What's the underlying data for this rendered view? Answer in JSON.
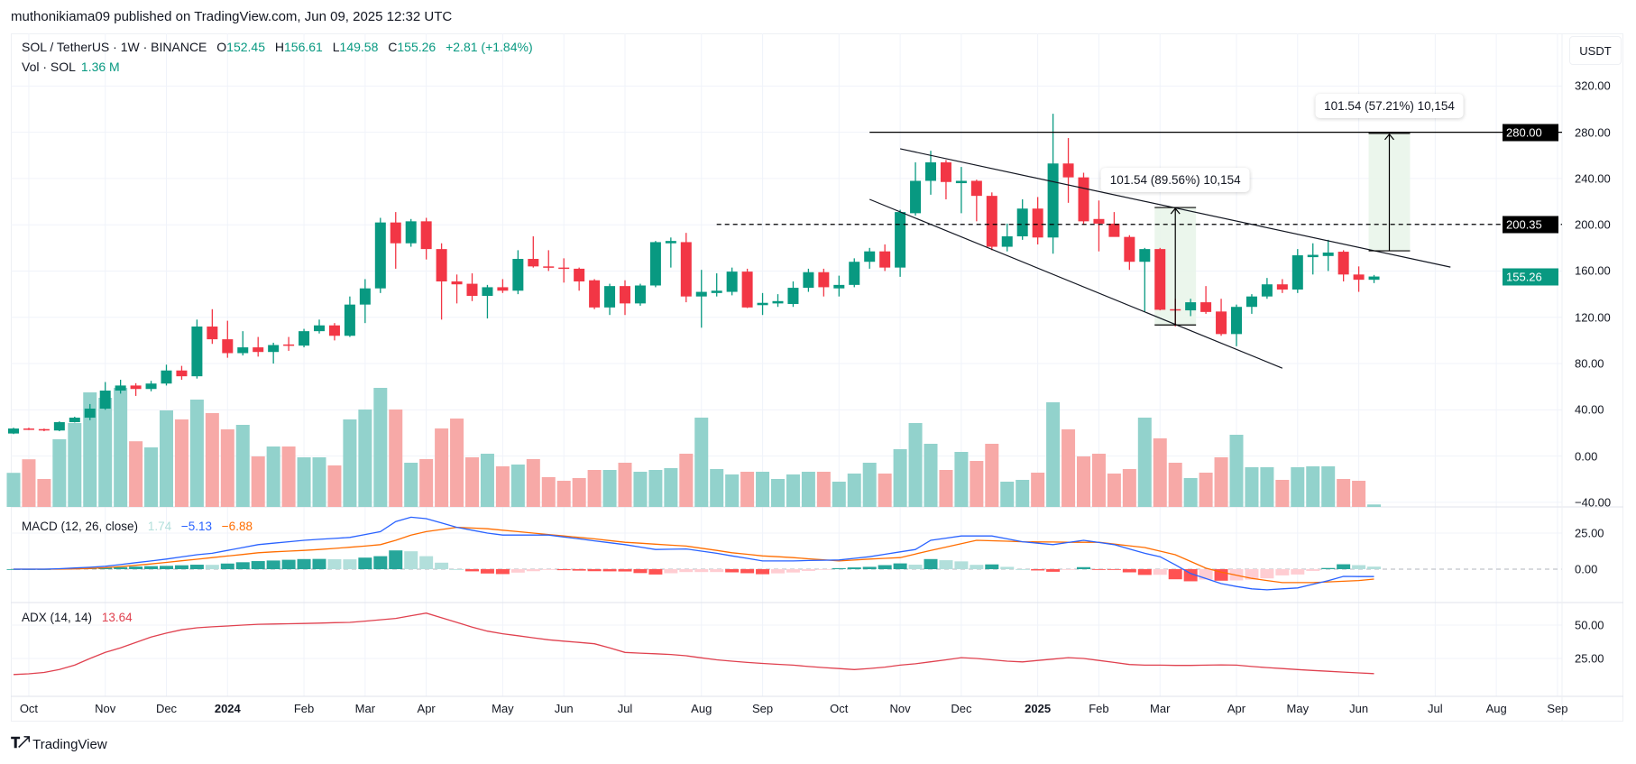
{
  "header": {
    "published": "muthonikiama09 published on TradingView.com, Jun 09, 2025 12:32 UTC"
  },
  "legend": {
    "symbol": "SOL / TetherUS · 1W · BINANCE",
    "o_label": "O",
    "o": "152.45",
    "h_label": "H",
    "h": "156.61",
    "l_label": "L",
    "l": "149.58",
    "c_label": "C",
    "c": "155.26",
    "change": "+2.81 (+1.84%)",
    "vol_label": "Vol · SOL",
    "vol": "1.36 M"
  },
  "macd_legend": {
    "title": "MACD (12, 26, close)",
    "hist": "1.74",
    "macd": "−5.13",
    "signal": "−6.88"
  },
  "adx_legend": {
    "title": "ADX (14, 14)",
    "value": "13.64"
  },
  "currency_button": "USDT",
  "footer": {
    "logo_text": "TradingView"
  },
  "colors": {
    "up": "#089981",
    "down": "#F23645",
    "vol_up": "#92d2cc",
    "vol_down": "#f7a9a7",
    "macd": "#2962FF",
    "signal": "#FF6D00",
    "hist_up_strong": "#26a69a",
    "hist_up_weak": "#b2dfdb",
    "hist_down_strong": "#ff5252",
    "hist_down_weak": "#ffcdd2",
    "adx": "#e0414f",
    "measure_fill": "#e8f5e9"
  },
  "chart_data": {
    "type": "candlestick",
    "symbol": "SOL / TetherUS",
    "interval": "1W",
    "start": "2023-09-25",
    "open": [
      19.5,
      23.8,
      23.3,
      22.1,
      29.3,
      33.2,
      41,
      56.6,
      61,
      58,
      62.7,
      74,
      69,
      112,
      101,
      89,
      94,
      90,
      96.5,
      95.5,
      108,
      113,
      104,
      131,
      145,
      202,
      184,
      203,
      179,
      151,
      149,
      138.5,
      146,
      143,
      170.5,
      164,
      163,
      162,
      152,
      128.5,
      147,
      132,
      147.5,
      184,
      185,
      138,
      141,
      142,
      159.5,
      130.5,
      132,
      131.5,
      145.5,
      159,
      145,
      148,
      168,
      177,
      163,
      210,
      238,
      254,
      236,
      238,
      225,
      181,
      190,
      214,
      189,
      253,
      241,
      205,
      201,
      189.5,
      168,
      179,
      127,
      126,
      133,
      125,
      105.5,
      129,
      138,
      148.5,
      144,
      172,
      173,
      176.7,
      157,
      152.45
    ],
    "high": [
      24.5,
      24.5,
      23.8,
      30,
      34,
      45,
      64,
      66,
      63,
      65,
      79,
      78,
      118,
      127,
      117,
      108,
      103,
      98,
      103,
      110,
      118,
      115,
      138,
      153,
      206,
      211,
      205,
      206,
      184,
      157,
      158,
      148,
      153,
      178,
      190,
      178,
      171,
      163,
      153,
      149,
      152,
      149,
      186,
      189,
      193,
      161,
      158,
      163,
      162,
      141,
      140,
      151,
      162,
      162,
      156,
      171,
      180,
      183,
      213,
      254,
      264,
      256,
      250,
      239,
      228,
      201,
      222,
      224,
      296,
      275,
      245,
      221,
      211,
      191,
      180,
      180,
      136,
      136,
      147,
      136,
      131,
      140,
      154,
      153,
      179,
      184,
      187,
      178,
      164,
      156.61
    ],
    "low": [
      19,
      22.5,
      21.5,
      21.5,
      29,
      31,
      40,
      54,
      52,
      56,
      61,
      66,
      67,
      97,
      85,
      87,
      86,
      80,
      91,
      94,
      106,
      100,
      103,
      115,
      141,
      162,
      181,
      170,
      118,
      132,
      134,
      119,
      141,
      140,
      163,
      160,
      150,
      143,
      127,
      122,
      122,
      130,
      146,
      163,
      133,
      111,
      138,
      139,
      128,
      122,
      129,
      129,
      142,
      138,
      138,
      146,
      162,
      160,
      155,
      208,
      226,
      222,
      210,
      203,
      178,
      177,
      187,
      183,
      175,
      219,
      200,
      177,
      190,
      161,
      125,
      126,
      112,
      121,
      123,
      104,
      95,
      123,
      136,
      141,
      141,
      157,
      160,
      151,
      142,
      149.58
    ],
    "close": [
      23.8,
      23.3,
      22.1,
      29.3,
      33.2,
      41,
      56.6,
      61,
      58,
      62.7,
      74,
      69,
      112,
      101,
      89,
      94,
      90,
      96,
      95.5,
      108,
      113,
      104,
      131,
      145,
      202,
      184,
      203,
      179,
      151,
      148.5,
      138.5,
      146,
      143,
      170.5,
      164,
      163,
      162,
      151,
      128.5,
      147,
      132,
      147.5,
      185,
      186,
      138,
      142,
      143,
      159.5,
      128.5,
      132.5,
      134,
      145.5,
      159,
      146,
      148,
      168,
      177,
      163,
      211,
      238,
      254,
      237,
      238,
      225,
      181,
      190,
      214,
      189,
      253,
      241,
      203,
      201,
      189.5,
      168,
      179,
      126.5,
      126,
      133,
      124.6,
      105.5,
      129,
      138,
      148.5,
      144,
      173.6,
      174,
      176,
      157,
      152.45,
      155.26
    ],
    "volume_unit": "M",
    "volume": [
      18.9,
      26.4,
      15.5,
      37.5,
      46.5,
      63.5,
      60.5,
      66,
      36.4,
      33,
      53.5,
      48.5,
      59.5,
      52,
      43,
      45.5,
      28,
      33.5,
      33.5,
      27.5,
      27.5,
      23,
      48.5,
      54,
      66,
      54,
      24.5,
      26.5,
      43.5,
      49,
      27.5,
      29.5,
      22.5,
      23.5,
      26.5,
      16.5,
      14.5,
      16,
      20.5,
      20.5,
      24.5,
      19.5,
      20.5,
      21.5,
      29.5,
      49.5,
      21,
      18,
      19.5,
      19.5,
      15.5,
      18,
      19.5,
      19.5,
      14,
      18.5,
      24.5,
      18.5,
      32,
      46.5,
      35,
      20.5,
      30.5,
      25.5,
      35,
      14,
      15,
      19,
      58,
      43,
      28,
      29.5,
      18.5,
      21,
      49.5,
      38,
      24.5,
      16,
      19,
      27.5,
      40,
      22,
      22,
      15,
      22,
      22.5,
      22.5,
      15.5,
      14.5,
      1.36
    ],
    "macd": {
      "params": [
        12,
        26,
        9
      ],
      "macd": [
        0,
        0,
        0,
        0.3,
        0.8,
        1.3,
        2,
        3.2,
        4.5,
        5.7,
        7,
        8.5,
        10,
        11,
        13,
        15,
        17,
        18,
        19,
        20,
        20.7,
        21.3,
        22,
        24,
        26,
        33,
        36,
        35,
        32,
        29,
        27,
        25,
        23.6,
        23.6,
        23.6,
        23.6,
        22.3,
        21,
        19.6,
        18.3,
        17,
        15.3,
        13.6,
        13.8,
        14,
        12.5,
        11,
        9.2,
        7.5,
        5.7,
        5.7,
        5.7,
        6,
        6.2,
        6.4,
        7.5,
        8.6,
        10.3,
        12,
        13.6,
        20,
        21.5,
        23,
        23,
        23,
        21,
        19,
        18,
        17,
        18.5,
        20,
        18.5,
        17,
        14,
        11,
        8.6,
        3,
        -3,
        -6.5,
        -10,
        -12,
        -13.6,
        -14.3,
        -13.6,
        -13,
        -10.5,
        -8,
        -5,
        -5.1,
        -5.13
      ],
      "signal": [
        0,
        0,
        0,
        0,
        0.2,
        0.5,
        1,
        1.8,
        2.7,
        3.6,
        4.7,
        5.8,
        6.9,
        8,
        9.1,
        10.2,
        11.4,
        12,
        12.5,
        13,
        13.6,
        14.4,
        15.2,
        16,
        17,
        20,
        23.6,
        26,
        27.5,
        29,
        28.5,
        28,
        27,
        26,
        25,
        24,
        23,
        22,
        21,
        19.8,
        18.6,
        18,
        17.3,
        16.6,
        16,
        14.5,
        13,
        11.4,
        10.3,
        9.2,
        8.6,
        8,
        7.2,
        6.5,
        5.7,
        6.3,
        7,
        7.5,
        8,
        10.5,
        13,
        15.3,
        17.6,
        20,
        19.7,
        19.4,
        19,
        18.9,
        18.8,
        18.6,
        18.6,
        18.6,
        17.4,
        16.2,
        15,
        12.5,
        10,
        5.4,
        0.7,
        -2,
        -4.2,
        -6.4,
        -7.9,
        -9.3,
        -9.3,
        -9.3,
        -8.8,
        -8.4,
        -7.9,
        -6.88
      ]
    },
    "adx": [
      13,
      13.5,
      14.5,
      16.7,
      20,
      25,
      29.5,
      33,
      37,
      41,
      44,
      46.5,
      48,
      48.7,
      49.3,
      50,
      50.6,
      50.8,
      51,
      51.2,
      51.5,
      51.8,
      52,
      53,
      54,
      55,
      57,
      59,
      55.5,
      52,
      48.5,
      45.5,
      43.5,
      42,
      40.5,
      39,
      38,
      37,
      36,
      33,
      29.5,
      29,
      28.5,
      28,
      27,
      25.5,
      24,
      23,
      22,
      21.3,
      20.6,
      20,
      19,
      18.2,
      17.4,
      16.7,
      17.5,
      18.5,
      20,
      21,
      22.5,
      24,
      25.6,
      25,
      24,
      23,
      22.4,
      23.5,
      24.5,
      25.6,
      25,
      23.5,
      22,
      20.5,
      20,
      20,
      19.8,
      19.8,
      20,
      20.2,
      20,
      19,
      18.2,
      17.4,
      16.7,
      16,
      15.4,
      14.8,
      14.2,
      13.64
    ],
    "price_axis": {
      "values": [
        320,
        280,
        240,
        200,
        160,
        120,
        80,
        40,
        0,
        -40
      ],
      "labels": [
        "320.00",
        "280.00",
        "240.00",
        "200.00",
        "160.00",
        "120.00",
        "80.00",
        "40.00",
        "0.00",
        "−40.00"
      ]
    },
    "macd_axis": {
      "values": [
        25,
        0
      ],
      "labels": [
        "25.00",
        "0.00"
      ]
    },
    "adx_axis": {
      "values": [
        50,
        25
      ],
      "labels": [
        "50.00",
        "25.00"
      ]
    },
    "time_axis": [
      {
        "label": "Oct",
        "date": "2023-10-02"
      },
      {
        "label": "Nov",
        "date": "2023-11-06"
      },
      {
        "label": "Dec",
        "date": "2023-12-04"
      },
      {
        "label": "2024",
        "date": "2024-01-01",
        "year": true
      },
      {
        "label": "Feb",
        "date": "2024-02-05"
      },
      {
        "label": "Mar",
        "date": "2024-03-04"
      },
      {
        "label": "Apr",
        "date": "2024-04-01"
      },
      {
        "label": "May",
        "date": "2024-05-06"
      },
      {
        "label": "Jun",
        "date": "2024-06-03"
      },
      {
        "label": "Jul",
        "date": "2024-07-01"
      },
      {
        "label": "Aug",
        "date": "2024-08-05"
      },
      {
        "label": "Sep",
        "date": "2024-09-02"
      },
      {
        "label": "Oct",
        "date": "2024-10-07"
      },
      {
        "label": "Nov",
        "date": "2024-11-04"
      },
      {
        "label": "Dec",
        "date": "2024-12-02"
      },
      {
        "label": "2025",
        "date": "2025-01-06",
        "year": true
      },
      {
        "label": "Feb",
        "date": "2025-02-03"
      },
      {
        "label": "Mar",
        "date": "2025-03-03"
      },
      {
        "label": "Apr",
        "date": "2025-04-07"
      },
      {
        "label": "May",
        "date": "2025-05-05"
      },
      {
        "label": "Jun",
        "date": "2025-06-02"
      },
      {
        "label": "Jul",
        "date": "2025-07-07"
      },
      {
        "label": "Aug",
        "date": "2025-08-04"
      },
      {
        "label": "Sep",
        "date": "2025-09-01"
      }
    ],
    "price_tags": [
      {
        "label": "280.00",
        "value": 280,
        "color": "#000000"
      },
      {
        "label": "200.35",
        "value": 200.35,
        "color": "#000000"
      },
      {
        "label": "155.26",
        "value": 155.26,
        "color": "#089981"
      }
    ],
    "drawings": {
      "horizontal_line": {
        "price": 280,
        "from": "2024-10-21"
      },
      "dashed_line": {
        "price": 200.35,
        "from": "2024-08-12"
      },
      "upper_trendline": {
        "from": {
          "date": "2024-11-04",
          "price": 265.7
        },
        "to": {
          "date": "2025-07-14",
          "price": 163.4
        }
      },
      "lower_trendline": {
        "from": {
          "date": "2024-10-21",
          "price": 222
        },
        "to": {
          "date": "2025-04-28",
          "price": 76
        }
      },
      "measures": [
        {
          "from": "2025-03-03",
          "to": "2025-03-17",
          "low": 113.38,
          "high": 214.92,
          "label": "101.54 (89.56%) 10,154"
        },
        {
          "from": "2025-06-09",
          "to": "2025-06-23",
          "low": 177.49,
          "high": 279.03,
          "label": "101.54 (57.21%) 10,154"
        }
      ]
    }
  }
}
